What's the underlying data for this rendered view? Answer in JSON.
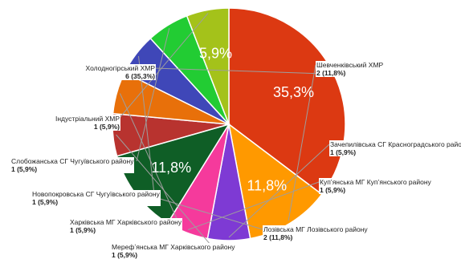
{
  "chart_data": {
    "type": "pie",
    "slices": [
      {
        "label": "Холодногірський ХМР",
        "count": 6,
        "percent": "35,3%",
        "value_text": "6 (35,3%)",
        "slice_text": "35,3%",
        "color": "#dc3912"
      },
      {
        "label": "Шевченківський ХМР",
        "count": 2,
        "percent": "11,8%",
        "value_text": "2 (11,8%)",
        "slice_text": "11,8%",
        "color": "#ff9900"
      },
      {
        "label": "Зачепилівська СГ Красноградського району",
        "count": 1,
        "percent": "5,9%",
        "value_text": "1 (5,9%)",
        "slice_text": "",
        "color": "#7e3ad4"
      },
      {
        "label": "Куп’янська МГ Куп’янського району",
        "count": 1,
        "percent": "5,9%",
        "value_text": "1 (5,9%)",
        "slice_text": "",
        "color": "#f53a9c"
      },
      {
        "label": "Лозівська МГ Лозівського району",
        "count": 2,
        "percent": "11,8%",
        "value_text": "2 (11,8%)",
        "slice_text": "11,8%",
        "color": "#0f5e26"
      },
      {
        "label": "Мерефʼянська МГ Харківського району",
        "count": 1,
        "percent": "5,9%",
        "value_text": "1 (5,9%)",
        "slice_text": "",
        "color": "#b8332f"
      },
      {
        "label": "Харківська МГ Харківського району",
        "count": 1,
        "percent": "5,9%",
        "value_text": "1 (5,9%)",
        "slice_text": "",
        "color": "#e8700a"
      },
      {
        "label": "Новопокровська СГ Чугуївського району",
        "count": 1,
        "percent": "5,9%",
        "value_text": "1 (5,9%)",
        "slice_text": "",
        "color": "#3f47b8"
      },
      {
        "label": "Слобожанська СГ Чугуївського району",
        "count": 1,
        "percent": "5,9%",
        "value_text": "1 (5,9%)",
        "slice_text": "",
        "color": "#22cc33"
      },
      {
        "label": "Індустріальний ХМР",
        "count": 1,
        "percent": "5,9%",
        "value_text": "1 (5,9%)",
        "slice_text": "5,9%",
        "color": "#a4c21a"
      }
    ],
    "start_angle_deg": 270,
    "direction": "clockwise",
    "leader_line_color": "#9e9e9e"
  }
}
